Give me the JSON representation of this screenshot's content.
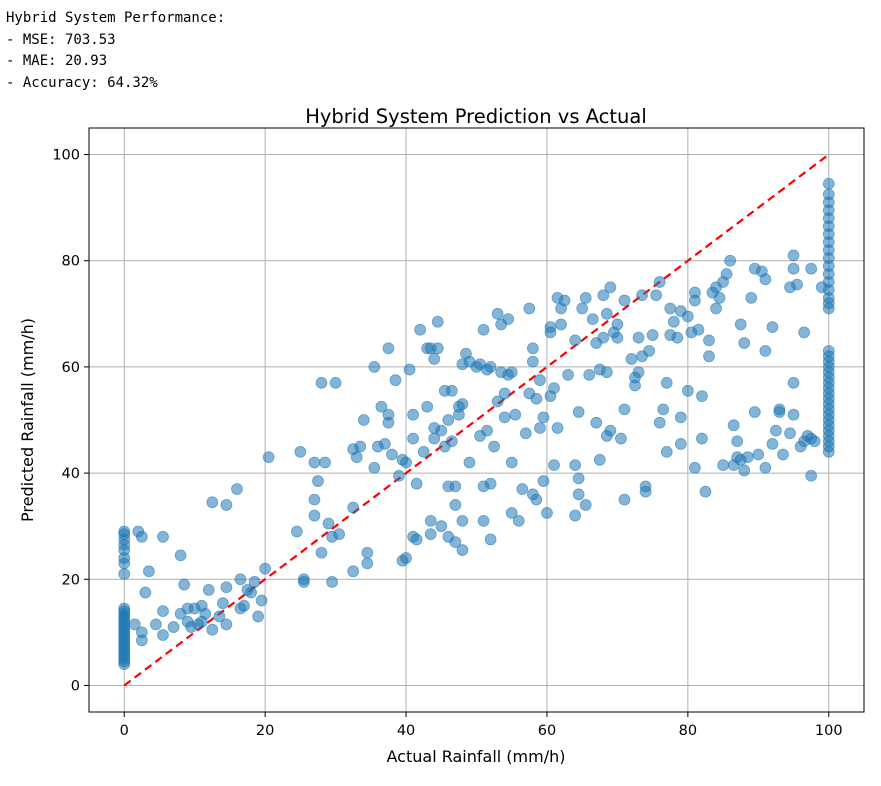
{
  "console": {
    "heading": "Hybrid System Performance:",
    "metrics": [
      "- MSE: 703.53",
      "- MAE: 20.93",
      "- Accuracy: 64.32%"
    ]
  },
  "chart_data": {
    "type": "scatter",
    "title": "Hybrid System Prediction vs Actual",
    "xlabel": "Actual Rainfall (mm/h)",
    "ylabel": "Predicted Rainfall (mm/h)",
    "xlim": [
      -5,
      105
    ],
    "ylim": [
      -5,
      105
    ],
    "xticks": [
      0,
      20,
      40,
      60,
      80,
      100
    ],
    "yticks": [
      0,
      20,
      40,
      60,
      80,
      100
    ],
    "grid": true,
    "point_color": "#1f77b4",
    "point_alpha": 0.55,
    "reference_line": {
      "x": [
        0,
        100
      ],
      "y": [
        0,
        100
      ],
      "color": "#ff0000",
      "style": "dashed"
    },
    "points": [
      [
        0,
        4
      ],
      [
        0,
        4.5
      ],
      [
        0,
        5
      ],
      [
        0,
        5.5
      ],
      [
        0,
        6
      ],
      [
        0,
        6.5
      ],
      [
        0,
        7
      ],
      [
        0,
        7.5
      ],
      [
        0,
        8
      ],
      [
        0,
        8.5
      ],
      [
        0,
        9
      ],
      [
        0,
        9.5
      ],
      [
        0,
        10
      ],
      [
        0,
        10.5
      ],
      [
        0,
        11
      ],
      [
        0,
        11.5
      ],
      [
        0,
        12
      ],
      [
        0,
        12.5
      ],
      [
        0,
        13
      ],
      [
        0,
        13.5
      ],
      [
        0,
        14
      ],
      [
        0,
        14.5
      ],
      [
        0,
        21
      ],
      [
        0,
        23
      ],
      [
        0,
        24
      ],
      [
        0,
        25.5
      ],
      [
        0,
        26.5
      ],
      [
        0,
        27.5
      ],
      [
        0,
        28.5
      ],
      [
        0,
        29
      ],
      [
        1.5,
        11.5
      ],
      [
        2,
        29
      ],
      [
        2.5,
        8.5
      ],
      [
        2.5,
        10
      ],
      [
        2.5,
        28
      ],
      [
        3,
        17.5
      ],
      [
        3.5,
        21.5
      ],
      [
        4.5,
        11.5
      ],
      [
        5.5,
        14
      ],
      [
        5.5,
        28
      ],
      [
        5.5,
        9.5
      ],
      [
        7,
        11
      ],
      [
        8,
        24.5
      ],
      [
        8,
        13.5
      ],
      [
        8.5,
        19
      ],
      [
        9,
        14.5
      ],
      [
        9,
        12
      ],
      [
        9.5,
        11
      ],
      [
        10,
        14.5
      ],
      [
        10.5,
        11.5
      ],
      [
        11,
        12
      ],
      [
        11,
        15
      ],
      [
        11.5,
        13.5
      ],
      [
        12,
        18
      ],
      [
        12.5,
        34.5
      ],
      [
        12.5,
        10.5
      ],
      [
        13.5,
        13
      ],
      [
        14,
        15.5
      ],
      [
        14.5,
        18.5
      ],
      [
        14.5,
        11.5
      ],
      [
        14.5,
        34
      ],
      [
        16,
        37
      ],
      [
        16.5,
        20
      ],
      [
        16.5,
        14.5
      ],
      [
        17,
        15
      ],
      [
        17.5,
        18
      ],
      [
        18,
        17.5
      ],
      [
        18.5,
        19.5
      ],
      [
        19,
        13
      ],
      [
        19.5,
        16
      ],
      [
        20,
        22
      ],
      [
        20.5,
        43
      ],
      [
        24.5,
        29
      ],
      [
        25,
        44
      ],
      [
        25.5,
        20
      ],
      [
        25.5,
        19.5
      ],
      [
        27,
        42
      ],
      [
        27,
        35
      ],
      [
        27,
        32
      ],
      [
        27.5,
        38.5
      ],
      [
        28,
        57
      ],
      [
        28,
        25
      ],
      [
        28.5,
        42
      ],
      [
        29,
        30.5
      ],
      [
        29.5,
        19.5
      ],
      [
        29.5,
        28
      ],
      [
        30,
        57
      ],
      [
        30.5,
        28.5
      ],
      [
        32.5,
        21.5
      ],
      [
        32.5,
        44.5
      ],
      [
        32.5,
        33.5
      ],
      [
        33,
        43
      ],
      [
        33.5,
        45
      ],
      [
        34,
        50
      ],
      [
        34.5,
        23
      ],
      [
        34.5,
        25
      ],
      [
        35.5,
        41
      ],
      [
        35.5,
        60
      ],
      [
        36,
        45
      ],
      [
        36.5,
        52.5
      ],
      [
        37,
        45.5
      ],
      [
        37.5,
        51
      ],
      [
        37.5,
        49.5
      ],
      [
        37.5,
        63.5
      ],
      [
        38,
        43.5
      ],
      [
        38.5,
        57.5
      ],
      [
        39,
        39.5
      ],
      [
        39.5,
        42.5
      ],
      [
        39.5,
        23.5
      ],
      [
        40,
        24
      ],
      [
        40,
        42
      ],
      [
        40.5,
        59.5
      ],
      [
        41,
        46.5
      ],
      [
        41,
        51
      ],
      [
        41,
        28
      ],
      [
        41.5,
        38
      ],
      [
        41.5,
        27.5
      ],
      [
        42,
        67
      ],
      [
        42.5,
        44
      ],
      [
        43,
        63.5
      ],
      [
        43,
        52.5
      ],
      [
        43.5,
        63.5
      ],
      [
        43.5,
        31
      ],
      [
        43.5,
        28.5
      ],
      [
        44,
        48.5
      ],
      [
        44,
        61.5
      ],
      [
        44,
        46.5
      ],
      [
        44.5,
        68.5
      ],
      [
        44.5,
        63.5
      ],
      [
        45,
        30
      ],
      [
        45,
        48
      ],
      [
        45.5,
        55.5
      ],
      [
        45.5,
        45
      ],
      [
        46,
        37.5
      ],
      [
        46,
        28
      ],
      [
        46,
        50
      ],
      [
        46.5,
        46
      ],
      [
        46.5,
        55.5
      ],
      [
        47,
        37.5
      ],
      [
        47,
        34
      ],
      [
        47,
        27
      ],
      [
        47.5,
        51
      ],
      [
        47.5,
        52.5
      ],
      [
        48,
        31
      ],
      [
        48,
        25.5
      ],
      [
        48,
        53
      ],
      [
        48,
        60.5
      ],
      [
        48.5,
        62.5
      ],
      [
        49,
        42
      ],
      [
        49,
        61
      ],
      [
        50,
        60
      ],
      [
        50.5,
        60.5
      ],
      [
        50.5,
        47
      ],
      [
        51,
        67
      ],
      [
        51,
        31
      ],
      [
        51,
        37.5
      ],
      [
        51.5,
        59.5
      ],
      [
        51.5,
        48
      ],
      [
        52,
        60
      ],
      [
        52,
        27.5
      ],
      [
        52,
        38
      ],
      [
        52.5,
        45
      ],
      [
        53,
        53.5
      ],
      [
        53,
        70
      ],
      [
        53.5,
        59
      ],
      [
        53.5,
        68
      ],
      [
        54,
        55
      ],
      [
        54,
        50.5
      ],
      [
        54.5,
        58.5
      ],
      [
        54.5,
        69
      ],
      [
        55,
        32.5
      ],
      [
        55,
        42
      ],
      [
        55,
        59
      ],
      [
        55.5,
        51
      ],
      [
        56,
        31
      ],
      [
        56.5,
        37
      ],
      [
        57,
        47.5
      ],
      [
        57.5,
        55
      ],
      [
        57.5,
        71
      ],
      [
        58,
        36
      ],
      [
        58,
        63.5
      ],
      [
        58,
        61
      ],
      [
        58.5,
        54
      ],
      [
        58.5,
        35
      ],
      [
        59,
        57.5
      ],
      [
        59,
        48.5
      ],
      [
        59.5,
        38.5
      ],
      [
        59.5,
        50.5
      ],
      [
        60,
        32.5
      ],
      [
        60.5,
        54.5
      ],
      [
        60.5,
        67.5
      ],
      [
        60.5,
        66.5
      ],
      [
        61,
        56
      ],
      [
        61,
        41.5
      ],
      [
        61.5,
        73
      ],
      [
        61.5,
        48.5
      ],
      [
        62,
        68
      ],
      [
        62,
        71
      ],
      [
        62.5,
        72.5
      ],
      [
        63,
        58.5
      ],
      [
        64,
        41.5
      ],
      [
        64,
        32
      ],
      [
        64,
        65
      ],
      [
        64.5,
        51.5
      ],
      [
        64.5,
        39
      ],
      [
        64.5,
        36
      ],
      [
        65,
        71
      ],
      [
        65.5,
        73
      ],
      [
        65.5,
        34
      ],
      [
        66,
        58.5
      ],
      [
        66.5,
        69
      ],
      [
        67,
        64.5
      ],
      [
        67,
        49.5
      ],
      [
        67.5,
        42.5
      ],
      [
        67.5,
        59.5
      ],
      [
        68,
        65.5
      ],
      [
        68,
        73.5
      ],
      [
        68.5,
        59
      ],
      [
        68.5,
        47
      ],
      [
        68.5,
        70
      ],
      [
        69,
        75
      ],
      [
        69,
        48
      ],
      [
        69.5,
        66.5
      ],
      [
        70,
        65.5
      ],
      [
        70,
        68
      ],
      [
        70.5,
        46.5
      ],
      [
        71,
        72.5
      ],
      [
        71,
        52
      ],
      [
        71,
        35
      ],
      [
        72,
        61.5
      ],
      [
        72.5,
        56.5
      ],
      [
        72.5,
        58
      ],
      [
        73,
        59
      ],
      [
        73,
        65.5
      ],
      [
        73.5,
        73.5
      ],
      [
        73.5,
        62
      ],
      [
        74,
        37.5
      ],
      [
        74,
        36.5
      ],
      [
        74.5,
        63
      ],
      [
        75,
        66
      ],
      [
        75.5,
        73.5
      ],
      [
        76,
        76
      ],
      [
        76,
        49.5
      ],
      [
        76.5,
        52
      ],
      [
        77,
        44
      ],
      [
        77,
        57
      ],
      [
        77.5,
        66
      ],
      [
        77.5,
        71
      ],
      [
        78,
        68.5
      ],
      [
        78.5,
        65.5
      ],
      [
        79,
        50.5
      ],
      [
        79,
        45.5
      ],
      [
        79,
        70.5
      ],
      [
        80,
        69.5
      ],
      [
        80,
        55.5
      ],
      [
        80.5,
        66.5
      ],
      [
        81,
        41
      ],
      [
        81,
        72.5
      ],
      [
        81,
        74
      ],
      [
        81.5,
        67
      ],
      [
        82,
        54.5
      ],
      [
        82,
        46.5
      ],
      [
        82.5,
        36.5
      ],
      [
        83,
        62
      ],
      [
        83,
        65
      ],
      [
        83.5,
        74
      ],
      [
        84,
        75
      ],
      [
        84,
        71
      ],
      [
        84.5,
        73
      ],
      [
        85,
        76
      ],
      [
        85,
        41.5
      ],
      [
        85.5,
        77.5
      ],
      [
        86,
        80
      ],
      [
        86.5,
        49
      ],
      [
        86.5,
        41.5
      ],
      [
        87,
        46
      ],
      [
        87,
        43
      ],
      [
        87.5,
        68
      ],
      [
        87.5,
        42.5
      ],
      [
        88,
        64.5
      ],
      [
        88,
        40.5
      ],
      [
        88.5,
        43
      ],
      [
        89,
        73
      ],
      [
        89.5,
        51.5
      ],
      [
        89.5,
        78.5
      ],
      [
        90,
        43.5
      ],
      [
        90.5,
        78
      ],
      [
        91,
        76.5
      ],
      [
        91,
        63
      ],
      [
        91,
        41
      ],
      [
        92,
        67.5
      ],
      [
        92,
        45.5
      ],
      [
        92.5,
        48
      ],
      [
        93,
        52
      ],
      [
        93,
        51.5
      ],
      [
        93.5,
        43.5
      ],
      [
        94.5,
        75
      ],
      [
        94.5,
        47.5
      ],
      [
        95,
        81
      ],
      [
        95,
        57
      ],
      [
        95,
        51
      ],
      [
        95,
        78.5
      ],
      [
        95.5,
        75.5
      ],
      [
        96,
        45
      ],
      [
        96.5,
        66.5
      ],
      [
        96.5,
        46
      ],
      [
        97,
        47
      ],
      [
        97.5,
        46.5
      ],
      [
        97.5,
        78.5
      ],
      [
        97.5,
        39.5
      ],
      [
        98,
        46
      ],
      [
        99,
        75
      ],
      [
        100,
        44
      ],
      [
        100,
        45
      ],
      [
        100,
        46
      ],
      [
        100,
        47
      ],
      [
        100,
        48
      ],
      [
        100,
        49
      ],
      [
        100,
        50
      ],
      [
        100,
        51
      ],
      [
        100,
        52
      ],
      [
        100,
        53
      ],
      [
        100,
        54
      ],
      [
        100,
        55
      ],
      [
        100,
        56
      ],
      [
        100,
        57
      ],
      [
        100,
        58
      ],
      [
        100,
        59
      ],
      [
        100,
        60
      ],
      [
        100,
        61
      ],
      [
        100,
        62
      ],
      [
        100,
        63
      ],
      [
        100,
        71
      ],
      [
        100,
        72
      ],
      [
        100,
        73
      ],
      [
        100,
        74.5
      ],
      [
        100,
        76
      ],
      [
        100,
        77.5
      ],
      [
        100,
        79
      ],
      [
        100,
        80.5
      ],
      [
        100,
        82
      ],
      [
        100,
        83.5
      ],
      [
        100,
        85
      ],
      [
        100,
        86.5
      ],
      [
        100,
        88
      ],
      [
        100,
        89.5
      ],
      [
        100,
        91
      ],
      [
        100,
        92.5
      ],
      [
        100,
        94.5
      ]
    ]
  }
}
